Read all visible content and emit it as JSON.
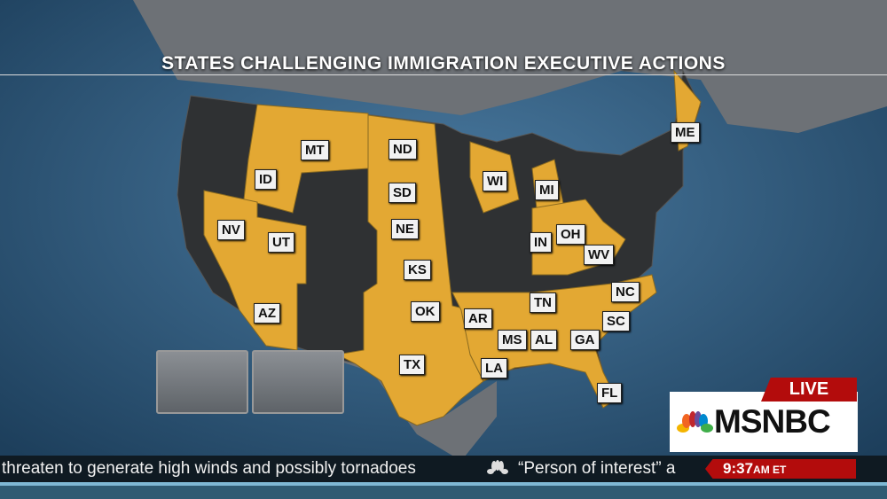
{
  "title": "STATES CHALLENGING IMMIGRATION EXECUTIVE ACTIONS",
  "colors": {
    "challenging": "#e3a833",
    "other": "#2f3133",
    "ocean": "#2a5578",
    "live": "#b30c0c"
  },
  "states": [
    "MT",
    "ND",
    "ID",
    "SD",
    "NV",
    "UT",
    "NE",
    "KS",
    "AZ",
    "OK",
    "TX",
    "AR",
    "MS",
    "AL",
    "GA",
    "LA",
    "FL",
    "TN",
    "NC",
    "SC",
    "WI",
    "MI",
    "IN",
    "OH",
    "WV",
    "ME"
  ],
  "network": {
    "live": "LIVE",
    "name": "MSNBC"
  },
  "ticker": {
    "text1": "threaten to generate high winds and possibly tornadoes",
    "text2": "“Person of interest” a",
    "time": "9:37",
    "time_suffix": "AM ET"
  }
}
